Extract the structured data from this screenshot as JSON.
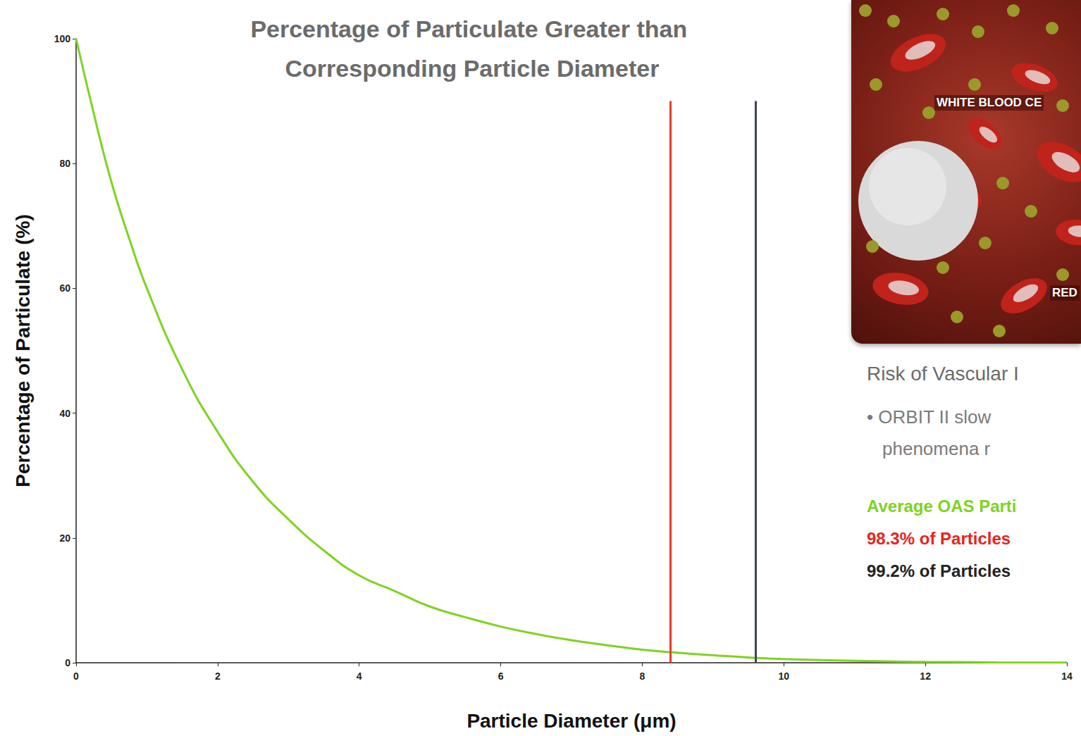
{
  "chart_data": {
    "type": "line",
    "title": "Percentage of Particulate Greater than Corresponding Particle Diameter",
    "x_label": "Particle Diameter (μm)",
    "y_label": "Percentage of Particulate (%)",
    "x": [
      0,
      0.25,
      0.5,
      0.75,
      1,
      1.5,
      2,
      2.5,
      3,
      3.5,
      4,
      4.5,
      5,
      5.5,
      6,
      6.5,
      7,
      7.5,
      8,
      8.5,
      9,
      9.5,
      10,
      11,
      12,
      13,
      14
    ],
    "series": [
      {
        "name": "Particulate",
        "color": "#7ed321",
        "values": [
          100,
          88,
          77,
          68,
          60,
          47,
          37,
          29,
          23,
          18,
          14,
          11.5,
          9,
          7.3,
          5.8,
          4.6,
          3.6,
          2.8,
          2.1,
          1.6,
          1.2,
          0.85,
          0.6,
          0.3,
          0.15,
          0.07,
          0.03
        ]
      }
    ],
    "xlim": [
      0,
      14
    ],
    "xticks": [
      0,
      2,
      4,
      6,
      8,
      10,
      12,
      14
    ],
    "ylim": [
      0,
      100
    ],
    "yticks": [
      0,
      20,
      40,
      60,
      80,
      100
    ],
    "grid": false,
    "vlines": [
      {
        "x": 8.4,
        "y": [
          0,
          90
        ],
        "color": "#f03a2a"
      },
      {
        "x": 9.6,
        "y": [
          0,
          90
        ],
        "color": "#3d4650"
      }
    ],
    "image_labels": [
      "WHITE BLOOD CE",
      "RED"
    ],
    "annotations": [
      {
        "text": "Risk of Vascular I",
        "color": "#6b6b6b"
      },
      {
        "text": "• ORBIT II slow",
        "color": "#7a7a7a"
      },
      {
        "text": "phenomena r",
        "color": "#7a7a7a"
      },
      {
        "text": "Average OAS Parti",
        "color": "#7ed321"
      },
      {
        "text": "98.3% of Particles",
        "color": "#e8231b"
      },
      {
        "text": "99.2% of Particles",
        "color": "#222222"
      }
    ]
  }
}
